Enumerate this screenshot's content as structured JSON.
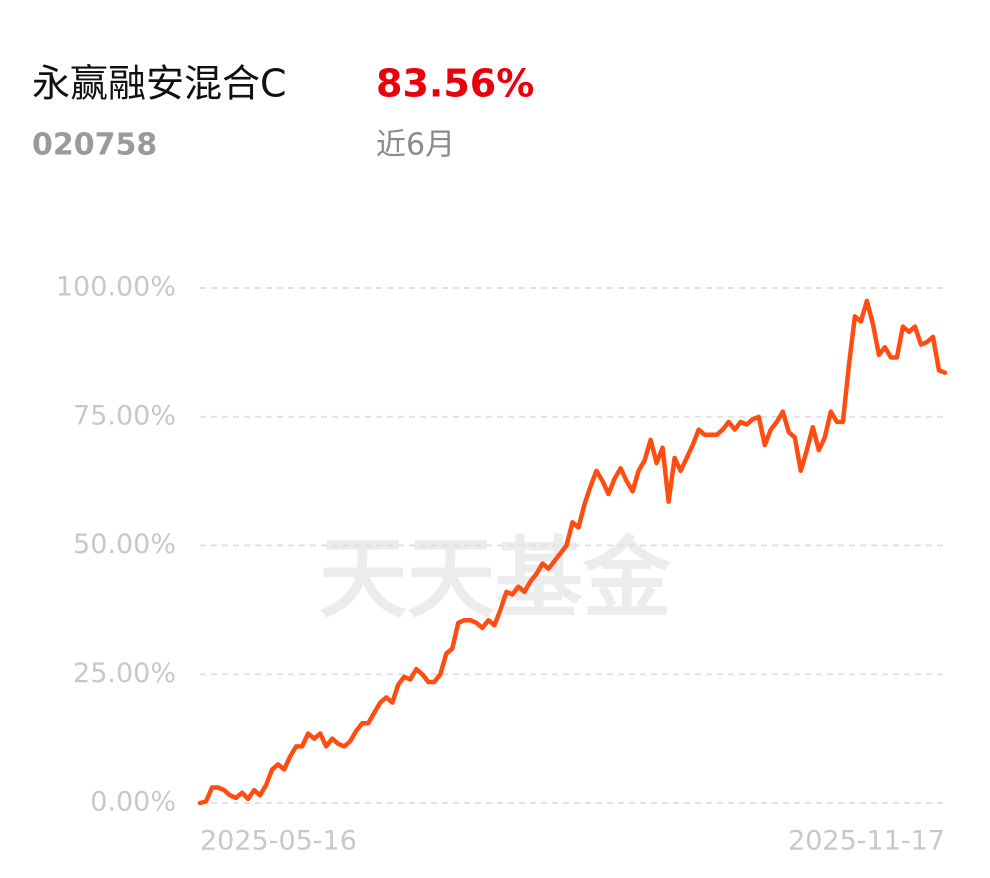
{
  "header": {
    "fund_name": "永赢融安混合C",
    "return": "83.56%",
    "code": "020758",
    "period": "近6月"
  },
  "watermark": "天天基金",
  "chart_data": {
    "type": "line",
    "categories": [
      "2025-05-16",
      null,
      null,
      null,
      null,
      null,
      null,
      null,
      null,
      null,
      null,
      null,
      null,
      null,
      null,
      null,
      null,
      null,
      null,
      null,
      null,
      null,
      null,
      null,
      null,
      null,
      null,
      null,
      null,
      null,
      null,
      null,
      null,
      null,
      null,
      null,
      null,
      null,
      null,
      null,
      null,
      null,
      null,
      null,
      null,
      null,
      null,
      null,
      null,
      null,
      null,
      null,
      null,
      null,
      null,
      null,
      null,
      null,
      null,
      null,
      null,
      null,
      null,
      null,
      null,
      null,
      null,
      null,
      null,
      null,
      null,
      null,
      null,
      null,
      null,
      null,
      null,
      null,
      null,
      null,
      null,
      null,
      null,
      null,
      null,
      null,
      null,
      null,
      null,
      null,
      null,
      null,
      null,
      null,
      null,
      null,
      null,
      null,
      null,
      null,
      null,
      null,
      null,
      null,
      null,
      null,
      null,
      null,
      null,
      null,
      null,
      null,
      null,
      null,
      null,
      null,
      null,
      null,
      null,
      null,
      null,
      null,
      null,
      null,
      "2025-11-17"
    ],
    "series": [
      {
        "name": "永赢融安混合C",
        "color": "#ff4d12",
        "values": [
          0,
          0.3,
          3,
          3,
          2.5,
          1.5,
          1,
          2,
          0.8,
          2.5,
          1.5,
          3.5,
          6.5,
          7.5,
          6.5,
          9,
          11,
          11,
          13.5,
          12.5,
          13.5,
          11,
          12.5,
          11.5,
          11,
          12,
          14,
          15.5,
          15.5,
          17.5,
          19.5,
          20.5,
          19.5,
          23,
          24.5,
          24,
          26,
          25,
          23.5,
          23.5,
          25,
          29,
          30,
          35,
          35.5,
          35.5,
          35,
          34,
          35.5,
          34.5,
          37.5,
          41,
          40.5,
          42,
          41,
          43,
          44.5,
          46.5,
          45.5,
          47,
          48.5,
          50,
          54.5,
          53.5,
          58,
          61.5,
          64.5,
          62.5,
          60,
          63,
          65,
          62.5,
          60.5,
          64.5,
          66.5,
          70.5,
          66,
          69,
          58.5,
          67,
          64.5,
          67,
          69.5,
          72.5,
          71.5,
          71.5,
          71.5,
          72.5,
          74,
          72.5,
          74,
          73.5,
          74.5,
          75,
          69.5,
          72.5,
          74,
          76,
          72,
          71,
          64.5,
          68.5,
          73,
          68.5,
          71,
          76,
          74,
          74,
          85,
          94.5,
          93.5,
          97.5,
          93,
          87,
          88.5,
          86.5,
          86.5,
          92.5,
          91.5,
          92.5,
          89,
          89.5,
          90.5,
          84,
          83.56
        ]
      }
    ],
    "ylim": [
      0,
      100
    ],
    "yticks": [
      {
        "value": 0,
        "label": "0.00%"
      },
      {
        "value": 25,
        "label": "25.00%"
      },
      {
        "value": 50,
        "label": "50.00%"
      },
      {
        "value": 75,
        "label": "75.00%"
      },
      {
        "value": 100,
        "label": "100.00%"
      }
    ],
    "grid": true
  }
}
